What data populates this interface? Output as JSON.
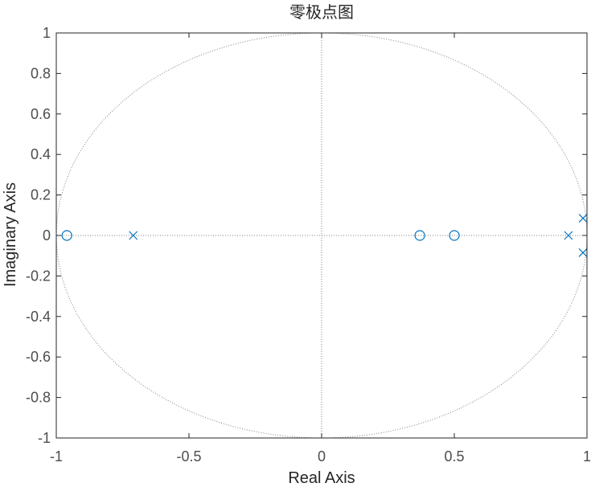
{
  "chart_data": {
    "type": "scatter",
    "title": "零极点图",
    "xlabel": "Real Axis",
    "ylabel": "Imaginary Axis",
    "xlim": [
      -1,
      1
    ],
    "ylim": [
      -1,
      1
    ],
    "xticks": [
      -1,
      -0.5,
      0,
      0.5,
      1
    ],
    "xtick_labels": [
      "-1",
      "-0.5",
      "0",
      "0.5",
      "1"
    ],
    "yticks": [
      1,
      0.8,
      0.6,
      0.4,
      0.2,
      0,
      -0.2,
      -0.4,
      -0.6,
      -0.8,
      -1
    ],
    "ytick_labels": [
      "1",
      "0.8",
      "0.6",
      "0.4",
      "0.2",
      "0",
      "-0.2",
      "-0.4",
      "-0.6",
      "-0.8",
      "-1"
    ],
    "grid": false,
    "unit_circle": true,
    "series": [
      {
        "marker": "o",
        "points": [
          [
            -0.96,
            0
          ],
          [
            0.37,
            0
          ],
          [
            0.5,
            0
          ]
        ]
      },
      {
        "marker": "x",
        "points": [
          [
            -0.71,
            0
          ],
          [
            0.93,
            0
          ],
          [
            0.985,
            0.085
          ],
          [
            0.985,
            -0.085
          ]
        ]
      }
    ],
    "colors": {
      "marker": "#0072bd",
      "axes": "#262626",
      "guides": "#808080"
    }
  }
}
